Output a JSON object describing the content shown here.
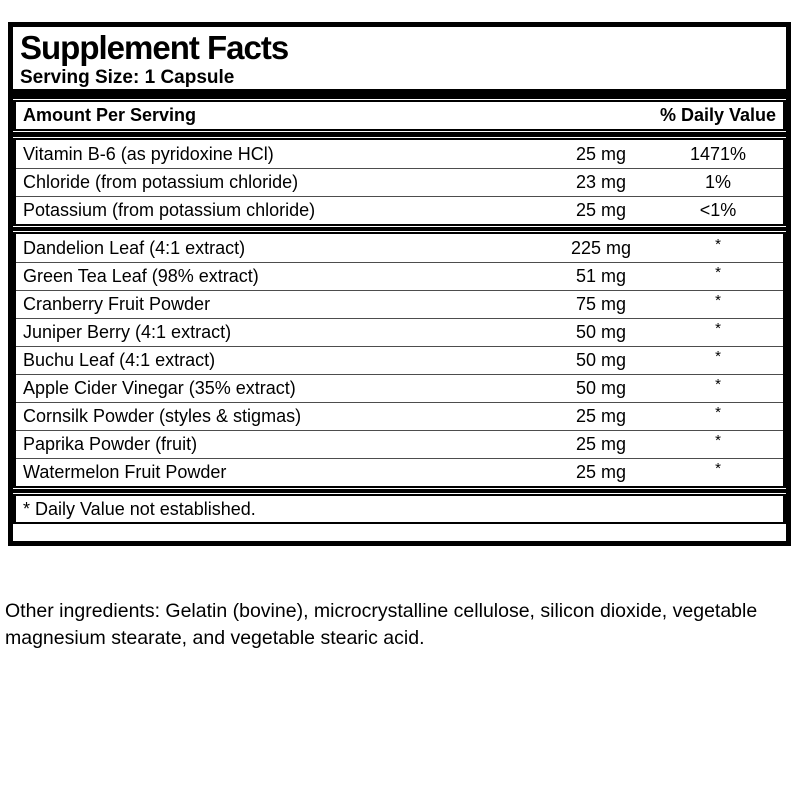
{
  "supplement_label": {
    "title": "Supplement Facts",
    "serving_size": "Serving Size: 1 Capsule",
    "header": {
      "amount_per_serving": "Amount Per Serving",
      "percent_daily_value": "% Daily Value"
    },
    "nutrient_rows": [
      {
        "name": "Vitamin B-6 (as pyridoxine HCl)",
        "amount": "25 mg",
        "daily_value": "1471%"
      },
      {
        "name": "Chloride (from potassium chloride)",
        "amount": "23 mg",
        "daily_value": "1%"
      },
      {
        "name": "Potassium (from potassium chloride)",
        "amount": "25 mg",
        "daily_value": "<1%"
      }
    ],
    "herbal_rows": [
      {
        "name": "Dandelion Leaf (4:1 extract)",
        "amount": "225 mg",
        "daily_value": "*"
      },
      {
        "name": "Green Tea Leaf (98% extract)",
        "amount": "51 mg",
        "daily_value": "*"
      },
      {
        "name": "Cranberry Fruit Powder",
        "amount": "75 mg",
        "daily_value": "*"
      },
      {
        "name": "Juniper Berry (4:1 extract)",
        "amount": "50 mg",
        "daily_value": "*"
      },
      {
        "name": "Buchu Leaf (4:1 extract)",
        "amount": "50 mg",
        "daily_value": "*"
      },
      {
        "name": "Apple Cider Vinegar (35% extract)",
        "amount": "50 mg",
        "daily_value": "*"
      },
      {
        "name": "Cornsilk Powder (styles & stigmas)",
        "amount": "25 mg",
        "daily_value": "*"
      },
      {
        "name": "Paprika Powder (fruit)",
        "amount": "25 mg",
        "daily_value": "*"
      },
      {
        "name": "Watermelon Fruit Powder",
        "amount": "25 mg",
        "daily_value": "*"
      }
    ],
    "footnote": "* Daily Value not established.",
    "colors": {
      "text": "#000000",
      "background": "#ffffff",
      "border": "#000000"
    }
  },
  "other_ingredients_text": "Other ingredients: Gelatin (bovine), microcrystalline cellulose, silicon dioxide, vegetable magnesium stearate, and vegetable stearic acid."
}
